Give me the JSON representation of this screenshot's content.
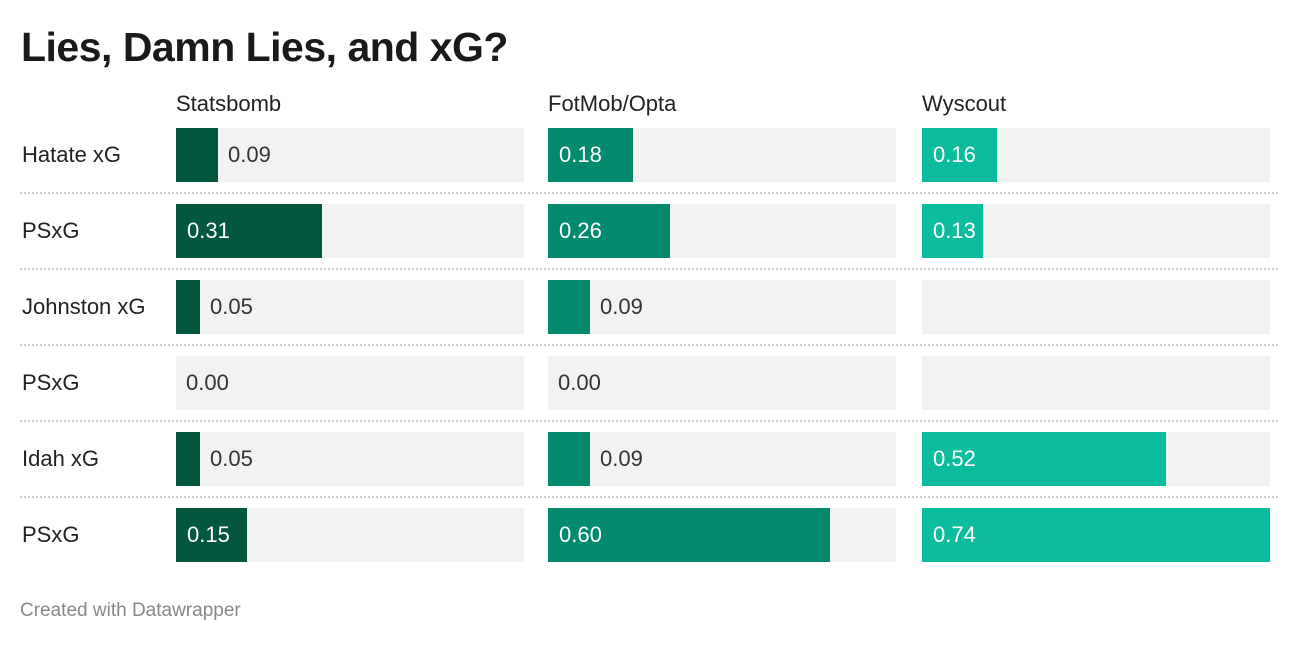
{
  "title": "Lies, Damn Lies, and xG?",
  "footer": "Created with Datawrapper",
  "colors": {
    "Statsbomb": "#03573f",
    "FotMob/Opta": "#028a6f",
    "Wyscout": "#0bbc9e",
    "track": "#f2f2f2",
    "label_on_bar": "#ffffff",
    "label_off_bar": "#333333"
  },
  "chart_data": {
    "type": "bar",
    "title": "Lies, Damn Lies, and xG?",
    "categories": [
      "Hatate xG",
      "PSxG",
      "Johnston xG",
      "PSxG",
      "Idah xG",
      "PSxG"
    ],
    "xlim": [
      0,
      0.9
    ],
    "series": [
      {
        "name": "Statsbomb",
        "values": [
          0.09,
          0.31,
          0.05,
          0.0,
          0.05,
          0.15
        ],
        "labels": [
          "0.09",
          "0.31",
          "0.05",
          "0.00",
          "0.05",
          "0.15"
        ]
      },
      {
        "name": "FotMob/Opta",
        "values": [
          0.18,
          0.26,
          0.09,
          0.0,
          0.09,
          0.6
        ],
        "labels": [
          "0.18",
          "0.26",
          "0.09",
          "0.00",
          "0.09",
          "0.60"
        ]
      },
      {
        "name": "Wyscout",
        "values": [
          0.16,
          0.13,
          null,
          null,
          0.52,
          0.74
        ],
        "labels": [
          "0.16",
          "0.13",
          "",
          "",
          "0.52",
          "0.74"
        ]
      }
    ]
  }
}
